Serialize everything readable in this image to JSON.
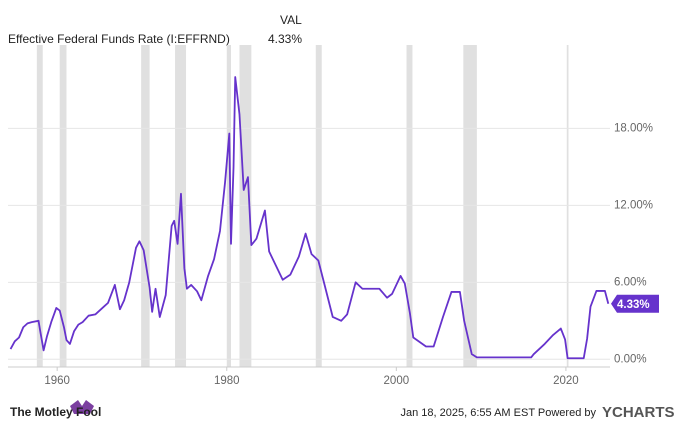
{
  "chart_data": {
    "type": "line",
    "header_label": "VAL",
    "current": {
      "value": 4.33,
      "label": "4.33%"
    },
    "recessions": [
      [
        1957.6,
        1958.3
      ],
      [
        1960.3,
        1961.1
      ],
      [
        1969.9,
        1970.9
      ],
      [
        1973.9,
        1975.2
      ],
      [
        1980.0,
        1980.5
      ],
      [
        1981.5,
        1982.9
      ],
      [
        1990.5,
        1991.2
      ],
      [
        2001.2,
        2001.9
      ],
      [
        2007.9,
        2009.5
      ],
      [
        2020.1,
        2020.3
      ]
    ],
    "recession_color": "#e0e0e0",
    "series": [
      {
        "name": "Effective Federal Funds Rate (I:EFFRND)",
        "color": "#6633cc",
        "x": [
          1954.5,
          1955.0,
          1955.5,
          1956.0,
          1956.5,
          1957.0,
          1957.8,
          1958.0,
          1958.4,
          1958.8,
          1959.3,
          1959.9,
          1960.3,
          1960.8,
          1961.1,
          1961.5,
          1962.0,
          1962.5,
          1963.0,
          1963.7,
          1964.5,
          1965.5,
          1966.0,
          1966.8,
          1967.4,
          1967.9,
          1968.5,
          1969.3,
          1969.7,
          1970.2,
          1970.9,
          1971.2,
          1971.6,
          1972.1,
          1972.8,
          1973.5,
          1973.8,
          1974.2,
          1974.6,
          1975.0,
          1975.3,
          1975.8,
          1976.5,
          1977.0,
          1977.8,
          1978.5,
          1979.2,
          1979.8,
          1980.3,
          1980.5,
          1980.8,
          1981.0,
          1981.5,
          1982.0,
          1982.5,
          1982.9,
          1983.5,
          1984.5,
          1985.0,
          1986.6,
          1987.5,
          1988.5,
          1989.3,
          1990.0,
          1990.8,
          1991.5,
          1992.5,
          1993.5,
          1994.2,
          1995.2,
          1996.0,
          1998.0,
          1998.9,
          1999.5,
          2000.5,
          2001.0,
          2001.6,
          2002.0,
          2003.5,
          2004.4,
          2005.5,
          2006.5,
          2007.5,
          2008.0,
          2008.9,
          2009.5,
          2012.0,
          2015.9,
          2016.2,
          2017.5,
          2018.5,
          2019.4,
          2019.9,
          2020.2,
          2022.1,
          2022.5,
          2022.9,
          2023.6,
          2024.6,
          2024.8,
          2025.0
        ],
        "values": [
          0.8,
          1.4,
          1.7,
          2.5,
          2.8,
          2.9,
          3.0,
          2.2,
          0.7,
          1.8,
          2.9,
          4.0,
          3.8,
          2.5,
          1.5,
          1.2,
          2.2,
          2.7,
          2.9,
          3.4,
          3.5,
          4.1,
          4.4,
          5.8,
          3.9,
          4.6,
          6.0,
          8.7,
          9.2,
          8.5,
          5.6,
          3.7,
          5.5,
          3.3,
          5.0,
          10.4,
          10.8,
          9.0,
          12.9,
          7.1,
          5.5,
          5.8,
          5.3,
          4.6,
          6.5,
          7.8,
          10.0,
          13.8,
          17.6,
          9.0,
          15.0,
          22.0,
          19.1,
          13.2,
          14.2,
          8.9,
          9.4,
          11.6,
          8.4,
          6.2,
          6.6,
          8.0,
          9.8,
          8.2,
          7.7,
          5.9,
          3.3,
          3.0,
          3.5,
          6.0,
          5.5,
          5.5,
          4.8,
          5.1,
          6.5,
          5.9,
          3.6,
          1.7,
          1.0,
          1.0,
          3.3,
          5.25,
          5.25,
          3.0,
          0.4,
          0.15,
          0.15,
          0.15,
          0.4,
          1.2,
          1.9,
          2.4,
          1.55,
          0.08,
          0.08,
          1.6,
          4.1,
          5.33,
          5.33,
          4.83,
          4.33
        ]
      }
    ],
    "xlim": [
      1954.2,
      2025.2
    ],
    "xticks": [
      1960,
      1980,
      2000,
      2020
    ],
    "ylim": [
      -0.6,
      24.5
    ],
    "yticks": [
      {
        "value": 0,
        "label": "0.00%"
      },
      {
        "value": 6,
        "label": "6.00%"
      },
      {
        "value": 12,
        "label": "12.00%"
      },
      {
        "value": 18,
        "label": "18.00%"
      }
    ],
    "grid": true
  },
  "footer": {
    "brand": "The Motley Fool",
    "timestamp": "Jan 18, 2025, 6:55 AM EST Powered by",
    "provider": "YCHARTS"
  }
}
